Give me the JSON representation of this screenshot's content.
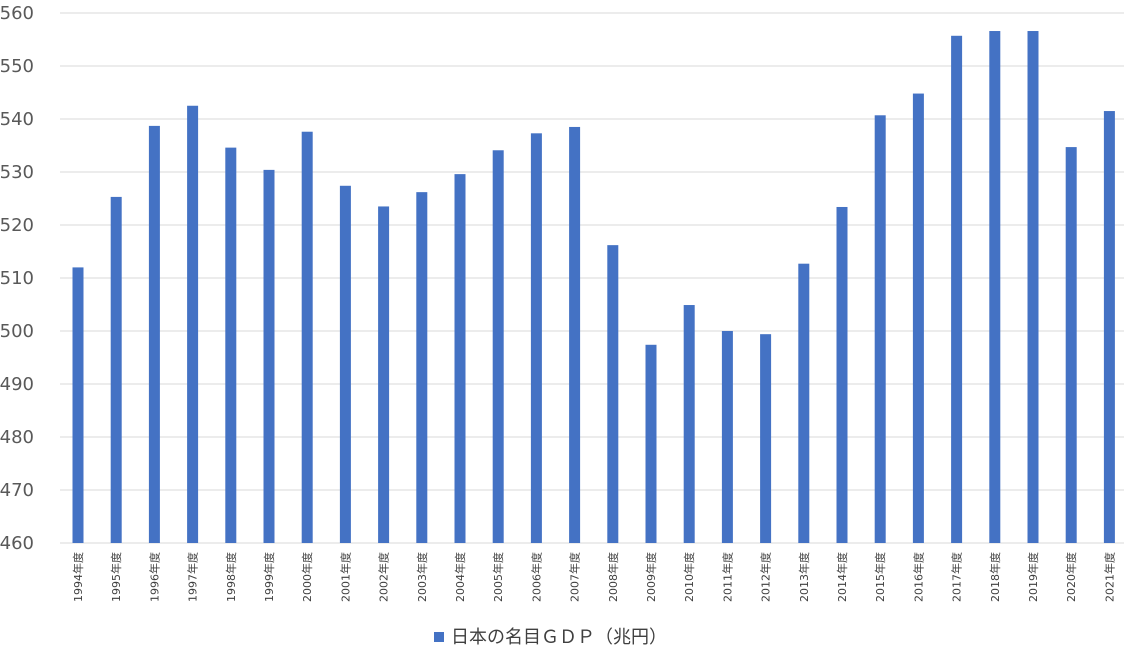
{
  "chart_data": {
    "type": "bar",
    "title": "",
    "xlabel": "",
    "ylabel": "",
    "ylim": [
      460,
      560
    ],
    "yticks": [
      460,
      470,
      480,
      490,
      500,
      510,
      520,
      530,
      540,
      550,
      560
    ],
    "grid": true,
    "legend": {
      "placement": "bottom",
      "entries": [
        "日本の名目ＧＤＰ（兆円）"
      ]
    },
    "colors": {
      "series": "#4472c4",
      "grid": "#d9d9d9"
    },
    "categories": [
      "1994年度",
      "1995年度",
      "1996年度",
      "1997年度",
      "1998年度",
      "1999年度",
      "2000年度",
      "2001年度",
      "2002年度",
      "2003年度",
      "2004年度",
      "2005年度",
      "2006年度",
      "2007年度",
      "2008年度",
      "2009年度",
      "2010年度",
      "2011年度",
      "2012年度",
      "2013年度",
      "2014年度",
      "2015年度",
      "2016年度",
      "2017年度",
      "2018年度",
      "2019年度",
      "2020年度",
      "2021年度"
    ],
    "series": [
      {
        "name": "日本の名目ＧＤＰ（兆円）",
        "values": [
          512.0,
          525.3,
          538.7,
          542.5,
          534.6,
          530.4,
          537.6,
          527.4,
          523.5,
          526.2,
          529.6,
          534.1,
          537.3,
          538.5,
          516.2,
          497.4,
          504.9,
          500.0,
          499.4,
          512.7,
          523.4,
          540.7,
          544.8,
          555.7,
          556.6,
          556.6,
          534.7,
          541.5
        ]
      }
    ]
  }
}
